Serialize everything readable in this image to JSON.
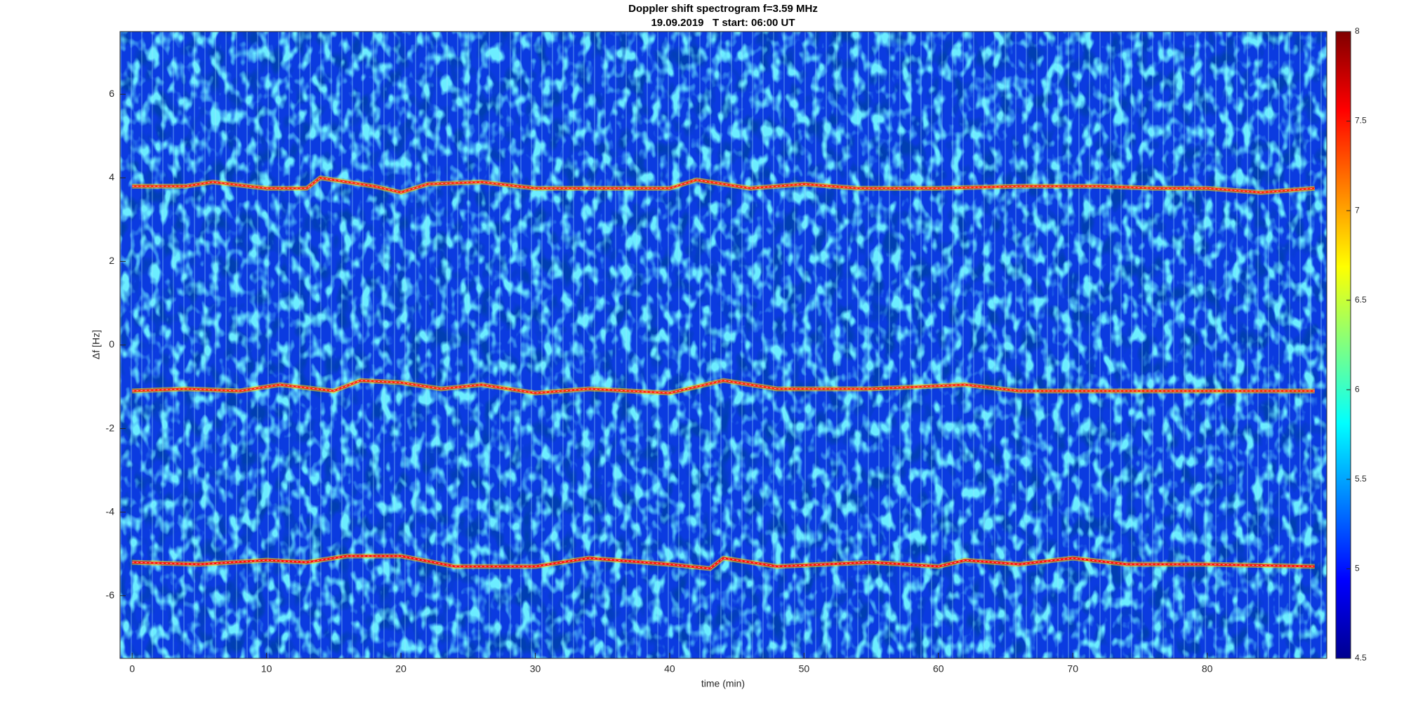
{
  "chart_data": {
    "type": "spectrogram",
    "title": "Doppler shift spectrogram f=3.59 MHz",
    "subtitle": "19.09.2019   T start: 06:00 UT",
    "xlabel": "time (min)",
    "ylabel": "Δf [Hz]",
    "xlim": [
      -0.9,
      88.9
    ],
    "xticks": [
      0,
      10,
      20,
      30,
      40,
      50,
      60,
      70,
      80
    ],
    "ylim": [
      -7.5,
      7.5
    ],
    "yticks": [
      -6,
      -4,
      -2,
      0,
      2,
      4,
      6
    ],
    "colormap": "jet",
    "clim": [
      4.5,
      8
    ],
    "cticks": [
      4.5,
      5,
      5.5,
      6,
      6.5,
      7,
      7.5,
      8
    ],
    "series": [
      {
        "color": "#ff2a00",
        "x": [
          0,
          4,
          6,
          10,
          13,
          14,
          18,
          20,
          22,
          26,
          30,
          34,
          40,
          42,
          46,
          50,
          54,
          60,
          66,
          72,
          76,
          80,
          84,
          88
        ],
        "values": [
          3.8,
          3.8,
          3.9,
          3.75,
          3.75,
          4.0,
          3.8,
          3.65,
          3.85,
          3.9,
          3.75,
          3.75,
          3.75,
          3.95,
          3.75,
          3.85,
          3.75,
          3.75,
          3.8,
          3.8,
          3.75,
          3.75,
          3.65,
          3.75
        ]
      },
      {
        "color": "#ff2a00",
        "x": [
          0,
          4,
          8,
          11,
          15,
          17,
          20,
          23,
          26,
          30,
          34,
          40,
          44,
          48,
          55,
          62,
          66,
          72,
          80,
          88
        ],
        "values": [
          -1.1,
          -1.05,
          -1.1,
          -0.95,
          -1.1,
          -0.85,
          -0.9,
          -1.05,
          -0.95,
          -1.15,
          -1.05,
          -1.15,
          -0.85,
          -1.05,
          -1.05,
          -0.95,
          -1.1,
          -1.1,
          -1.1,
          -1.1
        ]
      },
      {
        "color": "#ff1000",
        "x": [
          0,
          5,
          10,
          13,
          16,
          20,
          24,
          30,
          34,
          40,
          43,
          44,
          48,
          55,
          60,
          62,
          66,
          70,
          74,
          80,
          88
        ],
        "values": [
          -5.2,
          -5.25,
          -5.15,
          -5.2,
          -5.05,
          -5.05,
          -5.3,
          -5.3,
          -5.1,
          -5.25,
          -5.35,
          -5.1,
          -5.3,
          -5.2,
          -5.3,
          -5.15,
          -5.25,
          -5.1,
          -5.25,
          -5.25,
          -5.3
        ]
      }
    ]
  }
}
